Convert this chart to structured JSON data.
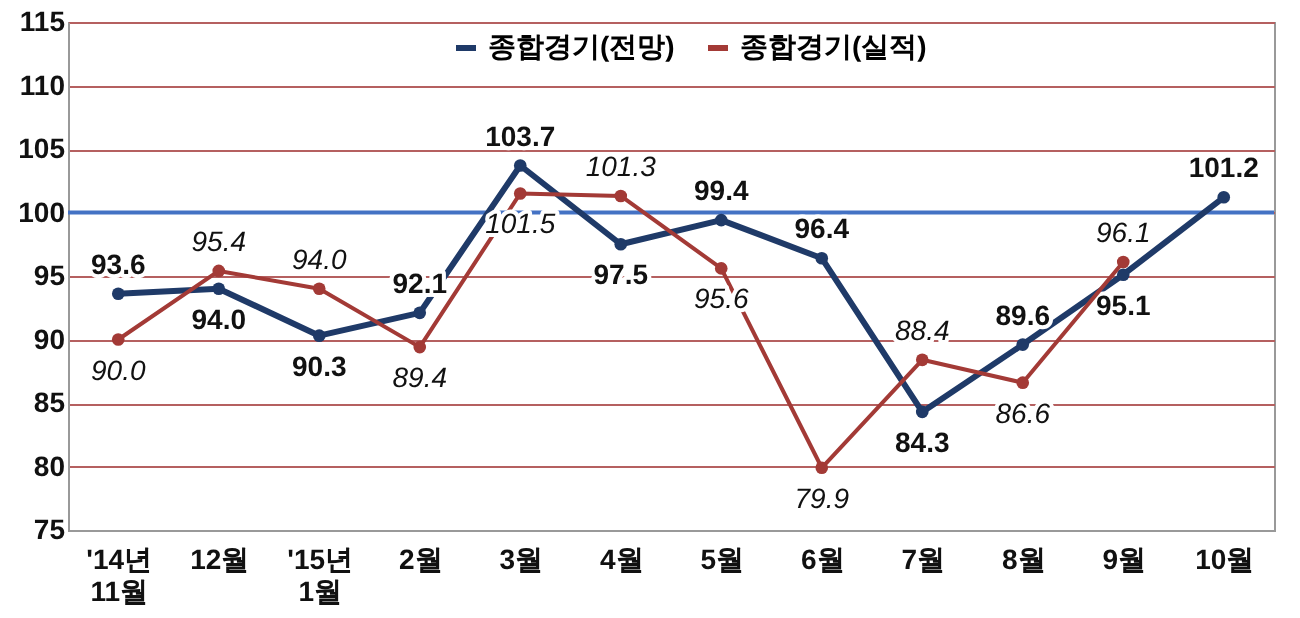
{
  "chart_data": {
    "type": "line",
    "categories": [
      "'14년\n11월",
      "12월",
      "'15년\n1월",
      "2월",
      "3월",
      "4월",
      "5월",
      "6월",
      "7월",
      "8월",
      "9월",
      "10월"
    ],
    "series": [
      {
        "name": "종합경기(전망)",
        "color": "#1f3a68",
        "values": [
          93.6,
          94.0,
          90.3,
          92.1,
          103.7,
          97.5,
          99.4,
          96.4,
          84.3,
          89.6,
          95.1,
          101.2
        ],
        "value_labels": [
          "93.6",
          "94.0",
          "90.3",
          "92.1",
          "103.7",
          "97.5",
          "99.4",
          "96.4",
          "84.3",
          "89.6",
          "95.1",
          "101.2"
        ]
      },
      {
        "name": "종합경기(실적)",
        "color": "#a33a36",
        "values": [
          90.0,
          95.4,
          94.0,
          89.4,
          101.5,
          101.3,
          95.6,
          79.9,
          88.4,
          86.6,
          96.1,
          null
        ],
        "value_labels": [
          "90.0",
          "95.4",
          "94.0",
          "89.4",
          "101.5",
          "101.3",
          "95.6",
          "79.9",
          "88.4",
          "86.6",
          "96.1",
          null
        ]
      }
    ],
    "ylim": [
      75,
      115
    ],
    "yticks": [
      75,
      80,
      85,
      90,
      95,
      100,
      105,
      110,
      115
    ],
    "ref_lines": [
      {
        "axis": "y",
        "value": 100,
        "color": "#4472c4"
      }
    ],
    "grid": "y",
    "legend": "top",
    "marker": "circle"
  }
}
